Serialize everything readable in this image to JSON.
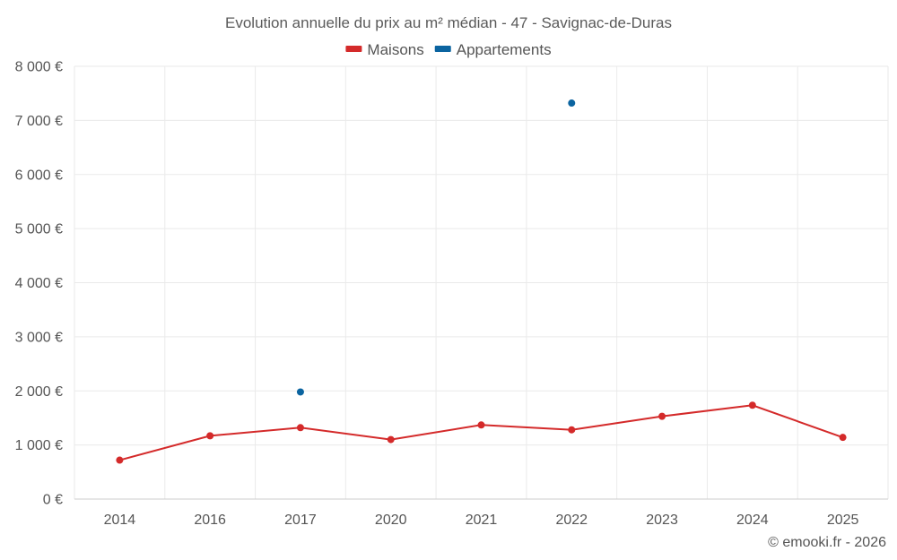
{
  "chart_data": {
    "type": "line",
    "title": "Evolution annuelle du prix au m² médian - 47 - Savignac-de-Duras",
    "categories": [
      "2014",
      "2016",
      "2017",
      "2020",
      "2021",
      "2022",
      "2023",
      "2024",
      "2025"
    ],
    "y_ticks": [
      "0 €",
      "1 000 €",
      "2 000 €",
      "3 000 €",
      "4 000 €",
      "5 000 €",
      "6 000 €",
      "7 000 €",
      "8 000 €"
    ],
    "ylim": [
      0,
      8000
    ],
    "legend_position": "top-center",
    "series": [
      {
        "name": "Maisons",
        "color": "#d42a2a",
        "values": [
          720,
          1170,
          1320,
          1100,
          1370,
          1280,
          1530,
          1735,
          1140
        ]
      },
      {
        "name": "Appartements",
        "color": "#0b64a0",
        "values": [
          null,
          null,
          1980,
          null,
          null,
          7320,
          null,
          null,
          null
        ]
      }
    ],
    "credit": "© emooki.fr - 2026"
  }
}
